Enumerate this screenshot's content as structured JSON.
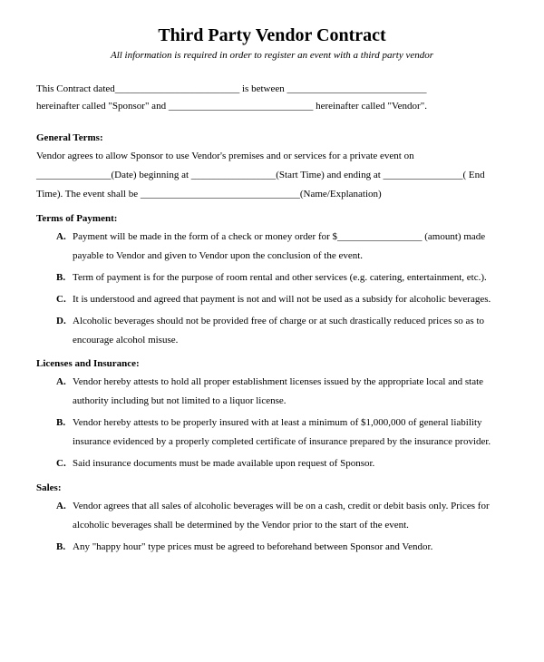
{
  "title": "Third Party Vendor Contract",
  "subtitle": "All information is required in order to register an event with a third party vendor",
  "intro_line1": "This Contract dated_________________________ is between ____________________________",
  "intro_line2": "hereinafter called \"Sponsor\" and _____________________________ hereinafter called \"Vendor\".",
  "sections": {
    "general": {
      "heading": "General Terms:",
      "body": "Vendor agrees to allow Sponsor to use Vendor's premises and or services for a private event on _______________(Date) beginning at _________________(Start Time) and ending at ________________( End Time). The event shall be ________________________________(Name/Explanation)"
    },
    "payment": {
      "heading": "Terms of Payment:",
      "items": [
        "Payment will be made in the form of a check or money order for $_________________ (amount) made payable to Vendor and given to Vendor upon the conclusion of the event.",
        "Term of payment is for the purpose of room rental and other services (e.g. catering, entertainment, etc.).",
        "It is understood and agreed that payment is not and will not be used as a subsidy for alcoholic beverages.",
        "Alcoholic beverages should not be provided free of charge or at such drastically reduced prices so as to encourage alcohol misuse."
      ]
    },
    "licenses": {
      "heading": "Licenses and Insurance:",
      "items": [
        "Vendor hereby attests to hold all proper establishment licenses issued by the appropriate local and state authority including but not limited to a liquor license.",
        "Vendor hereby attests to be properly insured with at least a minimum of $1,000,000 of general liability insurance evidenced by a properly completed certificate of insurance prepared by the insurance provider.",
        "Said insurance documents must be made available upon request of Sponsor."
      ]
    },
    "sales": {
      "heading": "Sales:",
      "items": [
        "Vendor agrees that all sales of alcoholic beverages will be on a cash, credit or debit basis only. Prices for alcoholic beverages shall be determined by the Vendor prior to the start of the event.",
        "Any \"happy hour\" type prices must be agreed to beforehand between Sponsor and Vendor."
      ]
    }
  },
  "letters": [
    "A.",
    "B.",
    "C.",
    "D."
  ],
  "style": {
    "title_fontsize": 20,
    "subtitle_fontsize": 11,
    "body_fontsize": 11,
    "font_family": "Times New Roman",
    "text_color": "#000000",
    "background_color": "#ffffff",
    "line_height": 1.9
  }
}
